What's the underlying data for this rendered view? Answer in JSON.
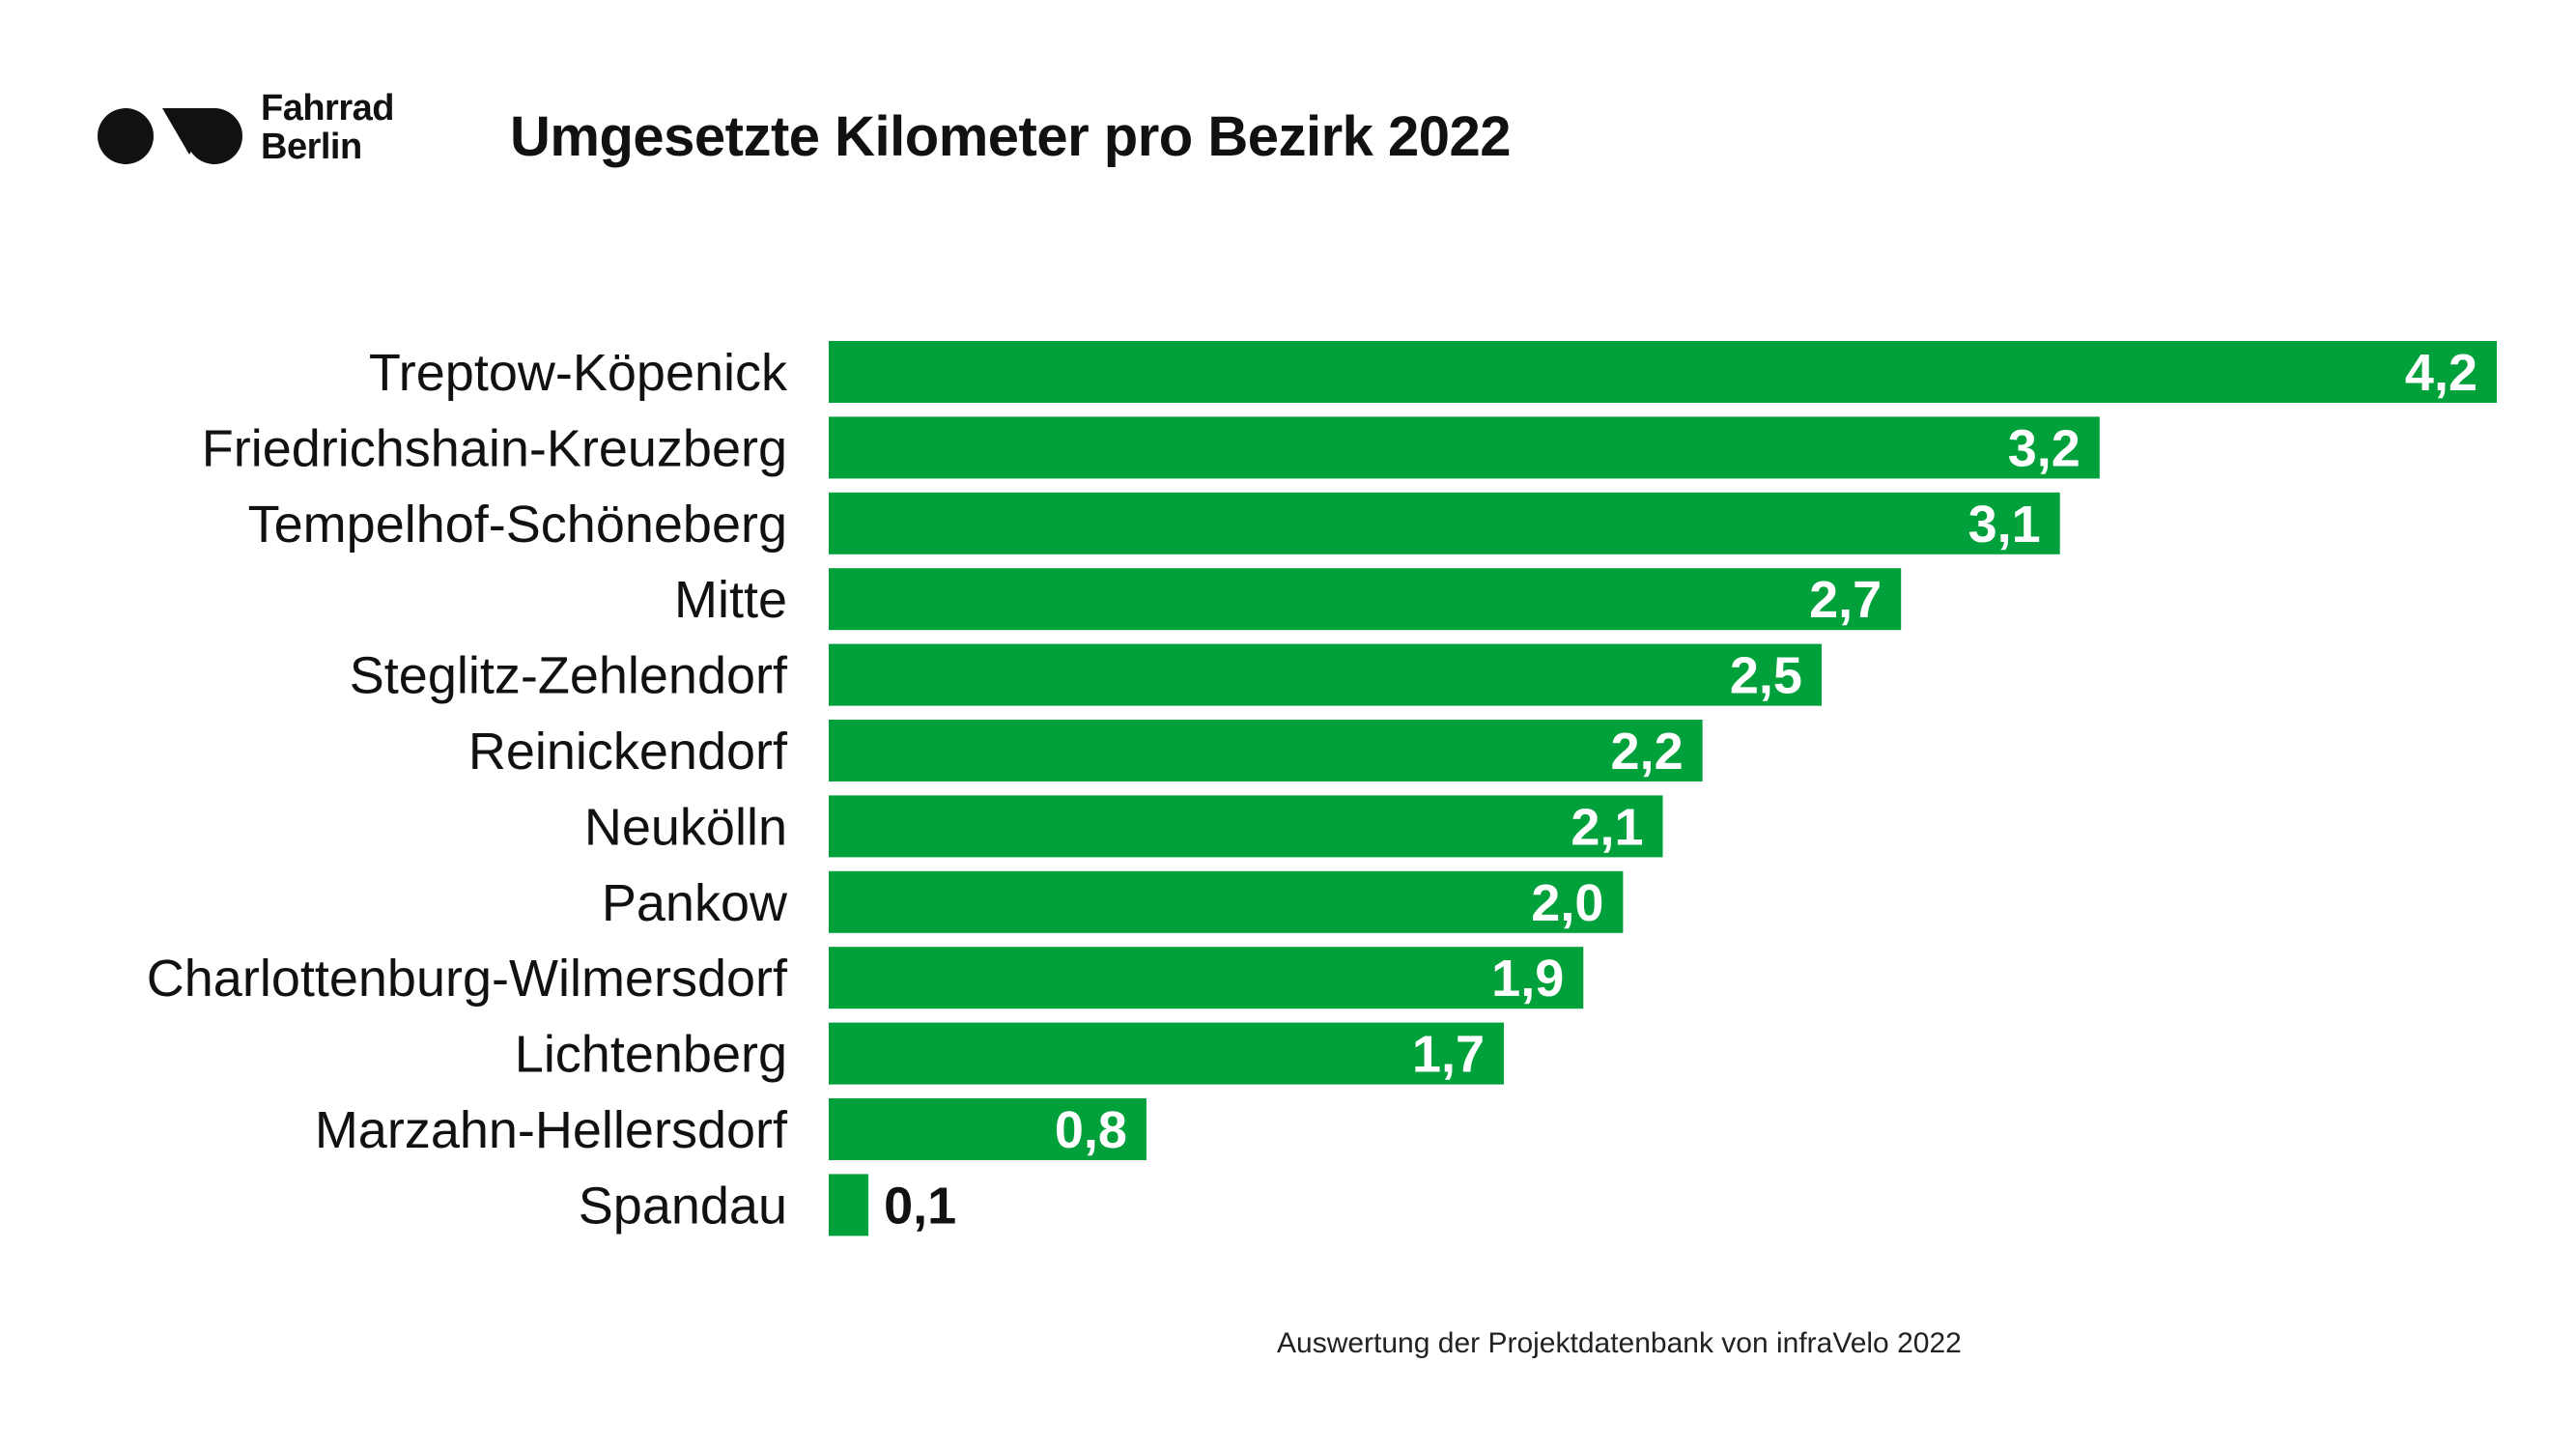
{
  "brand": {
    "line1": "Fahrrad",
    "line2": "Berlin"
  },
  "colors": {
    "bar": "#00a03b",
    "label_inside": "#ffffff",
    "label_outside": "#111111",
    "text": "#111111"
  },
  "source_note": "Auswertung der Projektdatenbank von infraVelo 2022",
  "chart_data": {
    "type": "bar",
    "orientation": "horizontal",
    "title": "Umgesetzte Kilometer pro Bezirk 2022",
    "xlabel": "",
    "ylabel": "",
    "xlim": [
      0,
      4.2
    ],
    "grid": false,
    "legend": "none",
    "categories": [
      "Treptow-Köpenick",
      "Friedrichshain-Kreuzberg",
      "Tempelhof-Schöneberg",
      "Mitte",
      "Steglitz-Zehlendorf",
      "Reinickendorf",
      "Neukölln",
      "Pankow",
      "Charlottenburg-Wilmersdorf",
      "Lichtenberg",
      "Marzahn-Hellersdorf",
      "Spandau"
    ],
    "values": [
      4.2,
      3.2,
      3.1,
      2.7,
      2.5,
      2.2,
      2.1,
      2.0,
      1.9,
      1.7,
      0.8,
      0.1
    ],
    "value_labels": [
      "4,2",
      "3,2",
      "3,1",
      "2,7",
      "2,5",
      "2,2",
      "2,1",
      "2,0",
      "1,9",
      "1,7",
      "0,8",
      "0,1"
    ]
  }
}
